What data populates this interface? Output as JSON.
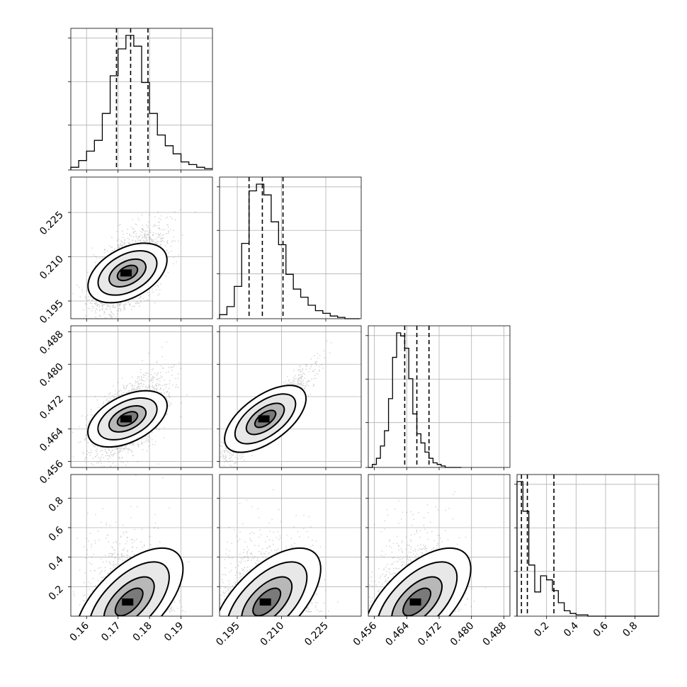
{
  "chart_data": {
    "type": "corner",
    "title": "",
    "parameters": [
      "",
      "",
      "",
      ""
    ],
    "ranges": [
      [
        0.155,
        0.2
      ],
      [
        0.189,
        0.237
      ],
      [
        0.4545,
        0.4895
      ],
      [
        0.0,
        0.96
      ]
    ],
    "ticks": [
      {
        "values": [
          0.16,
          0.17,
          0.18,
          0.19
        ],
        "labels": [
          "0.16",
          "0.17",
          "0.18",
          "0.19"
        ]
      },
      {
        "values": [
          0.195,
          0.21,
          0.225
        ],
        "labels": [
          "0.195",
          "0.210",
          "0.225"
        ]
      },
      {
        "values": [
          0.456,
          0.464,
          0.472,
          0.48,
          0.488
        ],
        "labels": [
          "0.456",
          "0.464",
          "0.472",
          "0.480",
          "0.488"
        ]
      },
      {
        "values": [
          0.2,
          0.4,
          0.6,
          0.8
        ],
        "labels": [
          "0.2",
          "0.4",
          "0.6",
          "0.8"
        ]
      }
    ],
    "quantiles": [
      [
        0.1695,
        0.174,
        0.1795
      ],
      [
        0.199,
        0.2035,
        0.2105
      ],
      [
        0.4635,
        0.4665,
        0.4695
      ],
      [
        0.03,
        0.07,
        0.25
      ]
    ],
    "histograms": [
      {
        "edges_from": 0.155,
        "bin_width": 0.0025,
        "counts": [
          2,
          7,
          14,
          22,
          42,
          70,
          90,
          100,
          92,
          65,
          42,
          26,
          18,
          12,
          6,
          4,
          2,
          1
        ]
      },
      {
        "edges_from": 0.189,
        "bin_width": 0.0025,
        "counts": [
          3,
          9,
          24,
          56,
          95,
          100,
          92,
          72,
          55,
          33,
          22,
          16,
          10,
          6,
          4,
          2,
          1,
          0,
          0
        ]
      },
      {
        "edges_from": 0.4545,
        "bin_width": 0.001,
        "counts": [
          0,
          2,
          6,
          14,
          24,
          45,
          72,
          88,
          86,
          78,
          58,
          35,
          22,
          16,
          10,
          6,
          3,
          2,
          1,
          0,
          0,
          0,
          0
        ]
      },
      {
        "edges_from": 0.0,
        "bin_width": 0.04,
        "counts": [
          100,
          78,
          38,
          18,
          30,
          27,
          19,
          10,
          4,
          2,
          1,
          1,
          0,
          0,
          0,
          0,
          0,
          0,
          0,
          0,
          0,
          0,
          0,
          0
        ]
      }
    ],
    "pairs": [
      {
        "row": 1,
        "col": 0,
        "mean": [
          0.173,
          0.2045
        ],
        "sd": [
          0.0055,
          0.0065
        ],
        "corr": 0.55
      },
      {
        "row": 2,
        "col": 0,
        "mean": [
          0.173,
          0.4665
        ],
        "sd": [
          0.0055,
          0.0044
        ],
        "corr": 0.55
      },
      {
        "row": 2,
        "col": 1,
        "mean": [
          0.2045,
          0.4665
        ],
        "sd": [
          0.0065,
          0.0044
        ],
        "corr": 0.9
      },
      {
        "row": 3,
        "col": 0,
        "mean": [
          0.1735,
          0.09
        ],
        "sd": [
          0.0055,
          0.09
        ],
        "corr": 0.35
      },
      {
        "row": 3,
        "col": 1,
        "mean": [
          0.205,
          0.09
        ],
        "sd": [
          0.0065,
          0.09
        ],
        "corr": 0.35
      },
      {
        "row": 3,
        "col": 2,
        "mean": [
          0.4665,
          0.09
        ],
        "sd": [
          0.0044,
          0.09
        ],
        "corr": 0.35
      }
    ],
    "density_bins": 20,
    "contour_levels": [
      0.118,
      0.393,
      0.675,
      0.864
    ],
    "grid": true,
    "legend": "none"
  }
}
